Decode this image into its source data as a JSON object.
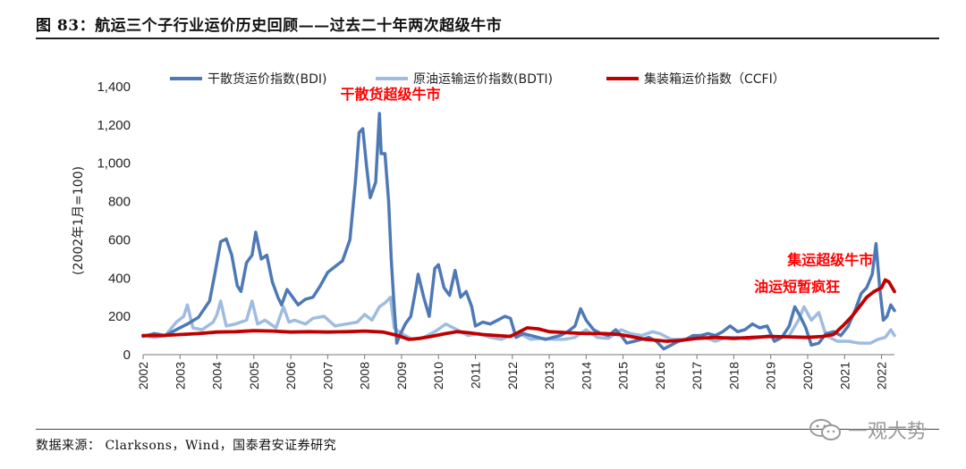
{
  "title": "图 83：航运三个子行业运价历史回顾——过去二十年两次超级牛市",
  "source": "数据来源：  Clarksons，Wind，国泰君安证券研究",
  "watermark": {
    "text": "一观大势",
    "icon": "wechat-icon"
  },
  "colors": {
    "bdi": "#4E79B5",
    "bdti": "#9FBCE0",
    "ccfi": "#C00000",
    "annotation": "#FF0000"
  },
  "chart_data": {
    "type": "line",
    "ylabel": "(2002年1月=100)",
    "xlabel": "",
    "xlim": [
      2002,
      2022.35
    ],
    "ylim": [
      0,
      1400
    ],
    "yticks": [
      0,
      200,
      400,
      600,
      800,
      1000,
      1200,
      1400
    ],
    "ytick_labels": [
      "0",
      "200",
      "400",
      "600",
      "800",
      "1,000",
      "1,200",
      "1,400"
    ],
    "xticks": [
      2002,
      2003,
      2004,
      2005,
      2006,
      2007,
      2008,
      2009,
      2010,
      2011,
      2012,
      2013,
      2014,
      2015,
      2016,
      2017,
      2018,
      2019,
      2020,
      2021,
      2022
    ],
    "xtick_labels": [
      "2002",
      "2003",
      "2004",
      "2005",
      "2006",
      "2007",
      "2008",
      "2009",
      "2010",
      "2011",
      "2012",
      "2013",
      "2014",
      "2015",
      "2016",
      "2017",
      "2018",
      "2019",
      "2020",
      "2021",
      "2022"
    ],
    "legend_position": "top",
    "series": [
      {
        "name": "干散货运价指数(BDI)",
        "color_key": "bdi",
        "points": [
          [
            2002,
            95
          ],
          [
            2002.3,
            110
          ],
          [
            2002.6,
            100
          ],
          [
            2002.9,
            130
          ],
          [
            2003.2,
            160
          ],
          [
            2003.5,
            195
          ],
          [
            2003.8,
            280
          ],
          [
            2003.95,
            430
          ],
          [
            2004.1,
            590
          ],
          [
            2004.25,
            605
          ],
          [
            2004.4,
            520
          ],
          [
            2004.55,
            360
          ],
          [
            2004.65,
            330
          ],
          [
            2004.8,
            480
          ],
          [
            2004.95,
            520
          ],
          [
            2005.05,
            640
          ],
          [
            2005.2,
            500
          ],
          [
            2005.35,
            520
          ],
          [
            2005.5,
            380
          ],
          [
            2005.65,
            300
          ],
          [
            2005.75,
            260
          ],
          [
            2005.9,
            340
          ],
          [
            2006.05,
            300
          ],
          [
            2006.2,
            260
          ],
          [
            2006.4,
            290
          ],
          [
            2006.6,
            300
          ],
          [
            2006.8,
            360
          ],
          [
            2007.0,
            430
          ],
          [
            2007.2,
            460
          ],
          [
            2007.4,
            490
          ],
          [
            2007.6,
            600
          ],
          [
            2007.75,
            900
          ],
          [
            2007.85,
            1160
          ],
          [
            2007.95,
            1180
          ],
          [
            2008.05,
            990
          ],
          [
            2008.15,
            820
          ],
          [
            2008.3,
            900
          ],
          [
            2008.4,
            1260
          ],
          [
            2008.45,
            1050
          ],
          [
            2008.55,
            1050
          ],
          [
            2008.65,
            800
          ],
          [
            2008.72,
            500
          ],
          [
            2008.8,
            250
          ],
          [
            2008.87,
            60
          ],
          [
            2008.95,
            100
          ],
          [
            2009.1,
            160
          ],
          [
            2009.25,
            200
          ],
          [
            2009.4,
            360
          ],
          [
            2009.45,
            420
          ],
          [
            2009.6,
            300
          ],
          [
            2009.75,
            200
          ],
          [
            2009.9,
            450
          ],
          [
            2010.0,
            470
          ],
          [
            2010.15,
            350
          ],
          [
            2010.3,
            310
          ],
          [
            2010.45,
            440
          ],
          [
            2010.6,
            300
          ],
          [
            2010.75,
            330
          ],
          [
            2010.9,
            250
          ],
          [
            2011.0,
            150
          ],
          [
            2011.2,
            170
          ],
          [
            2011.4,
            160
          ],
          [
            2011.6,
            180
          ],
          [
            2011.8,
            200
          ],
          [
            2011.95,
            190
          ],
          [
            2012.1,
            90
          ],
          [
            2012.3,
            110
          ],
          [
            2012.5,
            100
          ],
          [
            2012.7,
            90
          ],
          [
            2012.9,
            80
          ],
          [
            2013.1,
            90
          ],
          [
            2013.3,
            100
          ],
          [
            2013.5,
            120
          ],
          [
            2013.7,
            150
          ],
          [
            2013.85,
            240
          ],
          [
            2014.0,
            180
          ],
          [
            2014.2,
            130
          ],
          [
            2014.4,
            110
          ],
          [
            2014.6,
            100
          ],
          [
            2014.8,
            130
          ],
          [
            2014.95,
            100
          ],
          [
            2015.1,
            60
          ],
          [
            2015.3,
            70
          ],
          [
            2015.5,
            80
          ],
          [
            2015.7,
            90
          ],
          [
            2015.9,
            70
          ],
          [
            2016.1,
            30
          ],
          [
            2016.3,
            50
          ],
          [
            2016.5,
            70
          ],
          [
            2016.7,
            80
          ],
          [
            2016.9,
            100
          ],
          [
            2017.1,
            100
          ],
          [
            2017.3,
            110
          ],
          [
            2017.5,
            100
          ],
          [
            2017.7,
            120
          ],
          [
            2017.9,
            150
          ],
          [
            2018.1,
            120
          ],
          [
            2018.3,
            130
          ],
          [
            2018.5,
            160
          ],
          [
            2018.7,
            140
          ],
          [
            2018.9,
            150
          ],
          [
            2019.1,
            70
          ],
          [
            2019.3,
            90
          ],
          [
            2019.5,
            150
          ],
          [
            2019.65,
            250
          ],
          [
            2019.8,
            200
          ],
          [
            2019.95,
            140
          ],
          [
            2020.1,
            50
          ],
          [
            2020.3,
            60
          ],
          [
            2020.5,
            110
          ],
          [
            2020.7,
            120
          ],
          [
            2020.9,
            100
          ],
          [
            2021.1,
            150
          ],
          [
            2021.3,
            240
          ],
          [
            2021.45,
            320
          ],
          [
            2021.6,
            350
          ],
          [
            2021.75,
            420
          ],
          [
            2021.85,
            580
          ],
          [
            2021.95,
            350
          ],
          [
            2022.05,
            180
          ],
          [
            2022.15,
            200
          ],
          [
            2022.25,
            260
          ],
          [
            2022.35,
            230
          ]
        ]
      },
      {
        "name": "原油运输运价指数(BDTI)",
        "color_key": "bdti",
        "points": [
          [
            2002,
            100
          ],
          [
            2002.3,
            90
          ],
          [
            2002.6,
            100
          ],
          [
            2002.9,
            170
          ],
          [
            2003.1,
            200
          ],
          [
            2003.2,
            260
          ],
          [
            2003.35,
            140
          ],
          [
            2003.6,
            130
          ],
          [
            2003.9,
            170
          ],
          [
            2004.0,
            210
          ],
          [
            2004.1,
            280
          ],
          [
            2004.25,
            150
          ],
          [
            2004.5,
            160
          ],
          [
            2004.8,
            180
          ],
          [
            2004.95,
            280
          ],
          [
            2005.1,
            160
          ],
          [
            2005.3,
            180
          ],
          [
            2005.6,
            140
          ],
          [
            2005.8,
            250
          ],
          [
            2005.95,
            170
          ],
          [
            2006.1,
            180
          ],
          [
            2006.4,
            160
          ],
          [
            2006.6,
            190
          ],
          [
            2006.9,
            200
          ],
          [
            2007.2,
            150
          ],
          [
            2007.5,
            160
          ],
          [
            2007.8,
            170
          ],
          [
            2008.0,
            210
          ],
          [
            2008.2,
            180
          ],
          [
            2008.4,
            250
          ],
          [
            2008.55,
            270
          ],
          [
            2008.7,
            300
          ],
          [
            2008.8,
            140
          ],
          [
            2009.0,
            110
          ],
          [
            2009.3,
            80
          ],
          [
            2009.6,
            90
          ],
          [
            2009.9,
            120
          ],
          [
            2010.2,
            160
          ],
          [
            2010.5,
            130
          ],
          [
            2010.8,
            100
          ],
          [
            2011.1,
            110
          ],
          [
            2011.4,
            90
          ],
          [
            2011.7,
            80
          ],
          [
            2011.95,
            100
          ],
          [
            2012.2,
            110
          ],
          [
            2012.5,
            80
          ],
          [
            2012.8,
            85
          ],
          [
            2013.1,
            80
          ],
          [
            2013.4,
            80
          ],
          [
            2013.7,
            90
          ],
          [
            2014.0,
            130
          ],
          [
            2014.3,
            90
          ],
          [
            2014.6,
            85
          ],
          [
            2014.95,
            130
          ],
          [
            2015.2,
            110
          ],
          [
            2015.5,
            100
          ],
          [
            2015.8,
            120
          ],
          [
            2016.0,
            110
          ],
          [
            2016.3,
            80
          ],
          [
            2016.6,
            80
          ],
          [
            2016.9,
            85
          ],
          [
            2017.2,
            90
          ],
          [
            2017.5,
            70
          ],
          [
            2017.8,
            90
          ],
          [
            2018.1,
            90
          ],
          [
            2018.4,
            80
          ],
          [
            2018.7,
            90
          ],
          [
            2018.95,
            100
          ],
          [
            2019.2,
            90
          ],
          [
            2019.5,
            100
          ],
          [
            2019.75,
            180
          ],
          [
            2019.9,
            250
          ],
          [
            2020.1,
            180
          ],
          [
            2020.3,
            220
          ],
          [
            2020.5,
            100
          ],
          [
            2020.8,
            70
          ],
          [
            2021.1,
            70
          ],
          [
            2021.4,
            60
          ],
          [
            2021.7,
            60
          ],
          [
            2021.9,
            80
          ],
          [
            2022.1,
            90
          ],
          [
            2022.25,
            130
          ],
          [
            2022.35,
            100
          ]
        ]
      },
      {
        "name": "集装箱运价指数（CCFI）",
        "color_key": "ccfi",
        "points": [
          [
            2002,
            100
          ],
          [
            2002.5,
            100
          ],
          [
            2003,
            105
          ],
          [
            2003.5,
            110
          ],
          [
            2004,
            118
          ],
          [
            2004.5,
            120
          ],
          [
            2005,
            125
          ],
          [
            2005.5,
            123
          ],
          [
            2006,
            118
          ],
          [
            2006.5,
            120
          ],
          [
            2007,
            118
          ],
          [
            2007.5,
            120
          ],
          [
            2008,
            123
          ],
          [
            2008.5,
            118
          ],
          [
            2008.9,
            100
          ],
          [
            2009.2,
            80
          ],
          [
            2009.5,
            85
          ],
          [
            2009.8,
            95
          ],
          [
            2010.2,
            110
          ],
          [
            2010.5,
            120
          ],
          [
            2010.8,
            115
          ],
          [
            2011.2,
            105
          ],
          [
            2011.6,
            100
          ],
          [
            2011.95,
            95
          ],
          [
            2012.2,
            120
          ],
          [
            2012.4,
            140
          ],
          [
            2012.7,
            135
          ],
          [
            2013,
            120
          ],
          [
            2013.5,
            115
          ],
          [
            2014,
            110
          ],
          [
            2014.5,
            110
          ],
          [
            2014.9,
            105
          ],
          [
            2015.2,
            95
          ],
          [
            2015.6,
            80
          ],
          [
            2015.9,
            75
          ],
          [
            2016.2,
            70
          ],
          [
            2016.6,
            75
          ],
          [
            2017,
            85
          ],
          [
            2017.5,
            90
          ],
          [
            2018,
            85
          ],
          [
            2018.5,
            90
          ],
          [
            2019,
            95
          ],
          [
            2019.5,
            93
          ],
          [
            2020,
            90
          ],
          [
            2020.4,
            95
          ],
          [
            2020.7,
            105
          ],
          [
            2020.95,
            150
          ],
          [
            2021.2,
            200
          ],
          [
            2021.4,
            250
          ],
          [
            2021.6,
            300
          ],
          [
            2021.8,
            330
          ],
          [
            2022.0,
            350
          ],
          [
            2022.1,
            390
          ],
          [
            2022.2,
            380
          ],
          [
            2022.35,
            330
          ]
        ]
      }
    ],
    "annotations": [
      {
        "text": "干散货超级牛市",
        "x": 2008.7,
        "y": 1335
      },
      {
        "text": "集运超级牛市",
        "x": 2019.45,
        "y": 470
      },
      {
        "text": "油运短暂疯狂",
        "x": 2018.55,
        "y": 330
      }
    ]
  }
}
